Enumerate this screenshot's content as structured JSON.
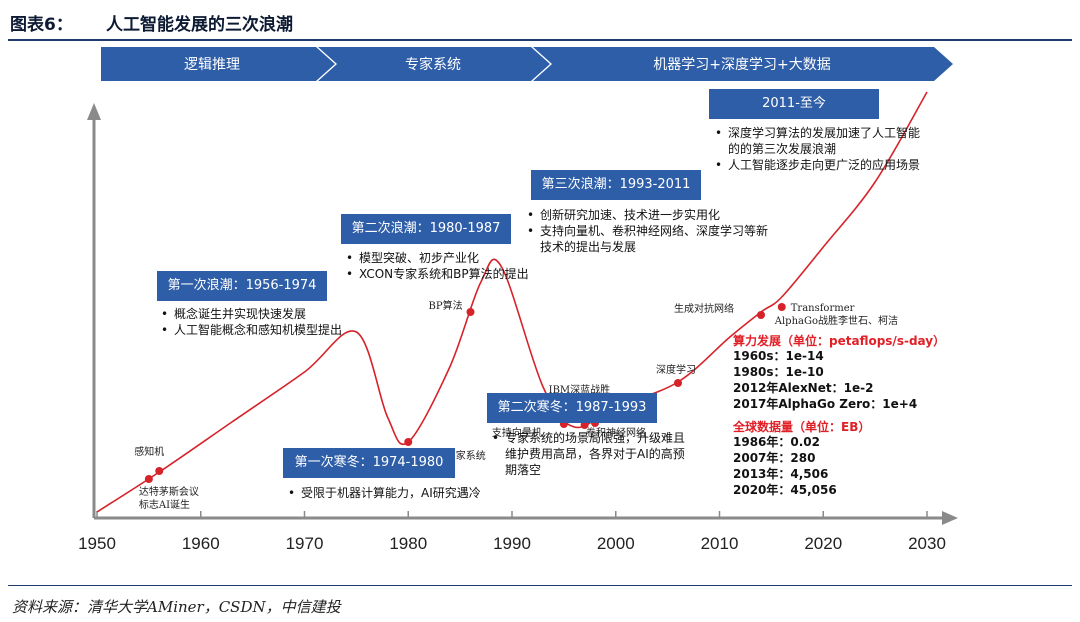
{
  "header": {
    "label": "图表6：",
    "title": "人工智能发展的三次浪潮"
  },
  "source": "资料来源：清华大学AMiner，CSDN，中信建投",
  "phases": [
    "逻辑推理",
    "专家系统",
    "机器学习+深度学习+大数据"
  ],
  "colors": {
    "box": "#2f5ea8",
    "curve": "#d6232a",
    "accent_text": "#e01f26",
    "axis": "#8a8a8a"
  },
  "boxes": {
    "wave1": {
      "title": "第一次浪潮：1956-1974",
      "bullets": [
        "概念诞生并实现快速发展",
        "人工智能概念和感知机模型提出"
      ]
    },
    "winter1": {
      "title": "第一次寒冬：1974-1980",
      "bullets": [
        "受限于机器计算能力，AI研究遇冷"
      ]
    },
    "wave2": {
      "title": "第二次浪潮：1980-1987",
      "bullets": [
        "模型突破、初步产业化",
        "XCON专家系统和BP算法的提出"
      ]
    },
    "winter2": {
      "title": "第二次寒冬：1987-1993",
      "bullets": [
        "专家系统的场景局限强，升级难且维护费用高昂，各界对于AI的高预期落空"
      ]
    },
    "wave3": {
      "title": "第三次浪潮：1993-2011",
      "bullets": [
        "创新研究加速、技术进一步实用化",
        "支持向量机、卷积神经网络、深度学习等新技术的提出与发展"
      ]
    },
    "now": {
      "title": "2011-至今",
      "bullets": [
        "深度学习算法的发展加速了人工智能的的第三次发展浪潮",
        "人工智能逐步走向更广泛的应用场景"
      ]
    }
  },
  "compute": {
    "title": "算力发展（单位：petaflops/s-day）",
    "items": [
      "1960s：1e-14",
      "1980s：1e-10",
      "2012年AlexNet：1e-2",
      "2017年AlphaGo Zero：1e+4"
    ]
  },
  "datasize": {
    "title": "全球数据量（单位：EB）",
    "items": [
      "1986年：0.02",
      "2007年：280",
      "2013年：4,506",
      "2020年：45,056"
    ]
  },
  "chart_data": {
    "type": "line",
    "xlim": [
      1950,
      2030
    ],
    "x_ticks": [
      1950,
      1960,
      1970,
      1980,
      1990,
      2000,
      2010,
      2020,
      2030
    ],
    "series": [
      {
        "x": [
          1950,
          1956,
          1963,
          1970,
          1975,
          1978,
          1980,
          1984,
          1987,
          1989,
          1993,
          1996,
          2000,
          2006,
          2011,
          2014,
          2016,
          2020,
          2025,
          2030
        ],
        "y": [
          0.5,
          4.5,
          9.5,
          14.5,
          18.5,
          10,
          7.5,
          15,
          23.5,
          25,
          13,
          9,
          11,
          13.5,
          18,
          20.5,
          22,
          27,
          33.5,
          42.5
        ]
      }
    ],
    "events": [
      {
        "label": "达特茅斯会议\n标志AI诞生",
        "x": 1955,
        "y": 3.8
      },
      {
        "label": "感知机",
        "x": 1956,
        "y": 4.6
      },
      {
        "label": "XCON专家系统",
        "x": 1980,
        "y": 7.5
      },
      {
        "label": "BP算法",
        "x": 1986,
        "y": 20.5
      },
      {
        "label": "支持向量机",
        "x": 1995,
        "y": 9.3
      },
      {
        "label": "IBM深蓝战胜\n国际象棋冠军",
        "x": 1997,
        "y": 9.2
      },
      {
        "label": "卷积神经网络",
        "x": 1998,
        "y": 9.4
      },
      {
        "label": "深度学习",
        "x": 2006,
        "y": 13.4
      },
      {
        "label": "生成对抗网络",
        "x": 2014,
        "y": 20.2
      },
      {
        "label": "Transformer",
        "x": 2016,
        "y": 21
      },
      {
        "label": "AlphaGo战胜李世石、柯洁",
        "x": 2016,
        "y": 21
      }
    ]
  }
}
